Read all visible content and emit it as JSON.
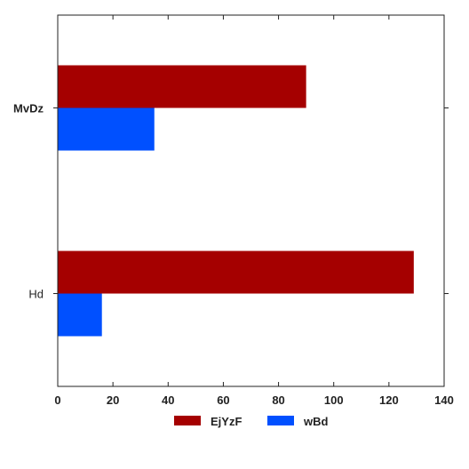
{
  "chart_data": {
    "type": "bar",
    "orientation": "horizontal",
    "categories": [
      "Hd",
      "MvDz"
    ],
    "category_label_bold": [
      false,
      true
    ],
    "series": [
      {
        "name": "EjYzF",
        "color": "#a50000",
        "values": [
          129,
          90
        ]
      },
      {
        "name": "wBd",
        "color": "#0050ff",
        "values": [
          16,
          35
        ]
      }
    ],
    "xlim": [
      0,
      140
    ],
    "xticks": [
      0,
      20,
      40,
      60,
      80,
      100,
      120,
      140
    ],
    "grid": false,
    "legend": "bottom-center",
    "title": "",
    "xlabel": "",
    "ylabel": ""
  }
}
